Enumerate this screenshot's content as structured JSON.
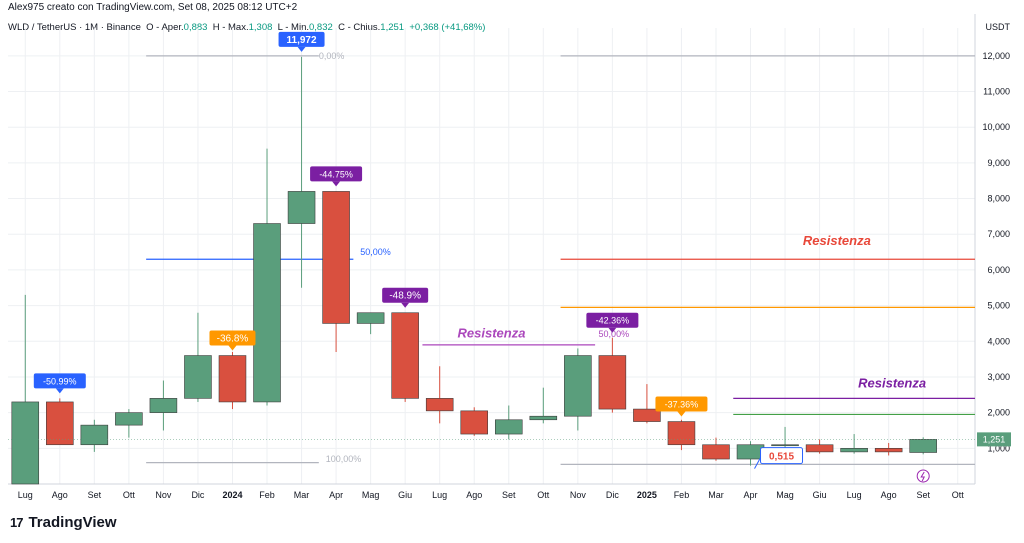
{
  "header": {
    "author_line": "Alex975 creato con TradingView.com, Set 08, 2025 08:12 UTC+2",
    "symbol": "WLD / TetherUS · 1M · Binance",
    "open_label": "O - Aper.",
    "open": "0,883",
    "high_label": "H - Max.",
    "high": "1,308",
    "low_label": "L - Min.",
    "low": "0,832",
    "close_label": "C - Chius.",
    "close": "1,251",
    "change": "+0,368 (+41,68%)"
  },
  "brand": {
    "mark": "17",
    "name": "TradingView"
  },
  "chart_data": {
    "type": "candlestick",
    "currency": "USDT",
    "ylim": [
      0,
      12500
    ],
    "y_ticks": [
      1000,
      2000,
      3000,
      4000,
      5000,
      6000,
      7000,
      8000,
      9000,
      10000,
      11000,
      12000
    ],
    "y_tick_labels": [
      "1,000",
      "2,000",
      "3,000",
      "4,000",
      "5,000",
      "6,000",
      "7,000",
      "8,000",
      "9,000",
      "10,000",
      "11,000",
      "12,000"
    ],
    "x_labels": [
      "Lug",
      "Ago",
      "Set",
      "Ott",
      "Nov",
      "Dic",
      "2024",
      "Feb",
      "Mar",
      "Apr",
      "Mag",
      "Giu",
      "Lug",
      "Ago",
      "Set",
      "Ott",
      "Nov",
      "Dic",
      "2025",
      "Feb",
      "Mar",
      "Apr",
      "Mag",
      "Giu",
      "Lug",
      "Ago",
      "Set",
      "Ott"
    ],
    "candles": [
      {
        "o": 0,
        "h": 5300,
        "l": 0,
        "c": 2300
      },
      {
        "o": 2300,
        "h": 2400,
        "l": 1100,
        "c": 1100
      },
      {
        "o": 1100,
        "h": 1800,
        "l": 900,
        "c": 1650
      },
      {
        "o": 1650,
        "h": 2100,
        "l": 1300,
        "c": 2000
      },
      {
        "o": 2000,
        "h": 2900,
        "l": 1500,
        "c": 2400
      },
      {
        "o": 2400,
        "h": 4800,
        "l": 2300,
        "c": 3600
      },
      {
        "o": 3600,
        "h": 3700,
        "l": 2100,
        "c": 2300
      },
      {
        "o": 2300,
        "h": 9400,
        "l": 2200,
        "c": 7300
      },
      {
        "o": 7300,
        "h": 11972,
        "l": 5500,
        "c": 8200
      },
      {
        "o": 8200,
        "h": 8200,
        "l": 3700,
        "c": 4500
      },
      {
        "o": 4500,
        "h": 4800,
        "l": 4200,
        "c": 4800
      },
      {
        "o": 4800,
        "h": 4800,
        "l": 2300,
        "c": 2400
      },
      {
        "o": 2400,
        "h": 3300,
        "l": 1700,
        "c": 2050
      },
      {
        "o": 2050,
        "h": 2150,
        "l": 1350,
        "c": 1400
      },
      {
        "o": 1400,
        "h": 2200,
        "l": 1250,
        "c": 1800
      },
      {
        "o": 1800,
        "h": 2700,
        "l": 1700,
        "c": 1900
      },
      {
        "o": 1900,
        "h": 3800,
        "l": 1500,
        "c": 3600
      },
      {
        "o": 3600,
        "h": 4100,
        "l": 2000,
        "c": 2100
      },
      {
        "o": 2100,
        "h": 2800,
        "l": 1700,
        "c": 1750
      },
      {
        "o": 1750,
        "h": 1800,
        "l": 950,
        "c": 1100
      },
      {
        "o": 1100,
        "h": 1300,
        "l": 650,
        "c": 700
      },
      {
        "o": 700,
        "h": 1200,
        "l": 515,
        "c": 1100
      },
      {
        "o": 1100,
        "h": 1600,
        "l": 850,
        "c": 1100
      },
      {
        "o": 1100,
        "h": 1250,
        "l": 850,
        "c": 900
      },
      {
        "o": 900,
        "h": 1400,
        "l": 850,
        "c": 1000
      },
      {
        "o": 1000,
        "h": 1150,
        "l": 800,
        "c": 900
      },
      {
        "o": 883,
        "h": 1308,
        "l": 832,
        "c": 1251
      }
    ],
    "price_tag": {
      "value": 1251,
      "label": "1,251"
    },
    "horizontal_lines": [
      {
        "y": 12000,
        "from": 4,
        "to": 9,
        "color": "#b2b5be"
      },
      {
        "y": 12000,
        "from": 16,
        "to": 28,
        "color": "#b2b5be"
      },
      {
        "y": 6300,
        "from": 4,
        "to": 10,
        "color": "#2962ff"
      },
      {
        "y": 6300,
        "from": 16,
        "to": 28,
        "color": "#e8483a"
      },
      {
        "y": 4950,
        "from": 16,
        "to": 28,
        "color": "#ff9800"
      },
      {
        "y": 3900,
        "from": 12,
        "to": 17,
        "color": "#ab47bc"
      },
      {
        "y": 2400,
        "from": 21,
        "to": 28,
        "color": "#7b1fa2"
      },
      {
        "y": 1950,
        "from": 21,
        "to": 28,
        "color": "#43a047"
      },
      {
        "y": 550,
        "from": 16,
        "to": 28,
        "color": "#b2b5be"
      },
      {
        "y": 600,
        "from": 4,
        "to": 9,
        "color": "#b2b5be"
      }
    ],
    "fib_labels": [
      {
        "text": "0,00%",
        "x": 9,
        "y": 12000,
        "color": "#b2b5be"
      },
      {
        "text": "50,00%",
        "x": 10.2,
        "y": 6500,
        "color": "#2962ff"
      },
      {
        "text": "50,00%",
        "x": 17.1,
        "y": 4200,
        "color": "#ab47bc"
      },
      {
        "text": "100,00%",
        "x": 9.2,
        "y": 700,
        "color": "#b2b5be"
      }
    ],
    "resistance_labels": [
      {
        "text": "Resistenza",
        "x": 24,
        "y": 6700,
        "color": "#e8483a"
      },
      {
        "text": "Resistenza",
        "x": 14,
        "y": 4100,
        "color": "#ab47bc"
      },
      {
        "text": "Resistenza",
        "x": 25.6,
        "y": 2700,
        "color": "#7b1fa2"
      }
    ],
    "callouts": [
      {
        "text": "11,972",
        "x": 8,
        "y": 11972,
        "color": "#2962ff"
      },
      {
        "text": "-44.75%",
        "x": 9,
        "y": 8200,
        "color": "#7b1fa2"
      },
      {
        "text": "-48.9%",
        "x": 11,
        "y": 4800,
        "color": "#7b1fa2"
      },
      {
        "text": "-42.36%",
        "x": 17,
        "y": 4100,
        "color": "#7b1fa2"
      },
      {
        "text": "-36.8%",
        "x": 6,
        "y": 3600,
        "color": "#ff9800"
      },
      {
        "text": "-37.36%",
        "x": 19,
        "y": 1750,
        "color": "#ff9800"
      },
      {
        "text": "-50.99%",
        "x": 1,
        "y": 2400,
        "color": "#2962ff"
      }
    ],
    "low_marker": {
      "text": "0,515",
      "x": 21,
      "y": 515
    },
    "colors": {
      "up": "#5a9e7c",
      "down": "#d9503f",
      "grid": "#eef0f3",
      "axis_text": "#131722"
    }
  }
}
